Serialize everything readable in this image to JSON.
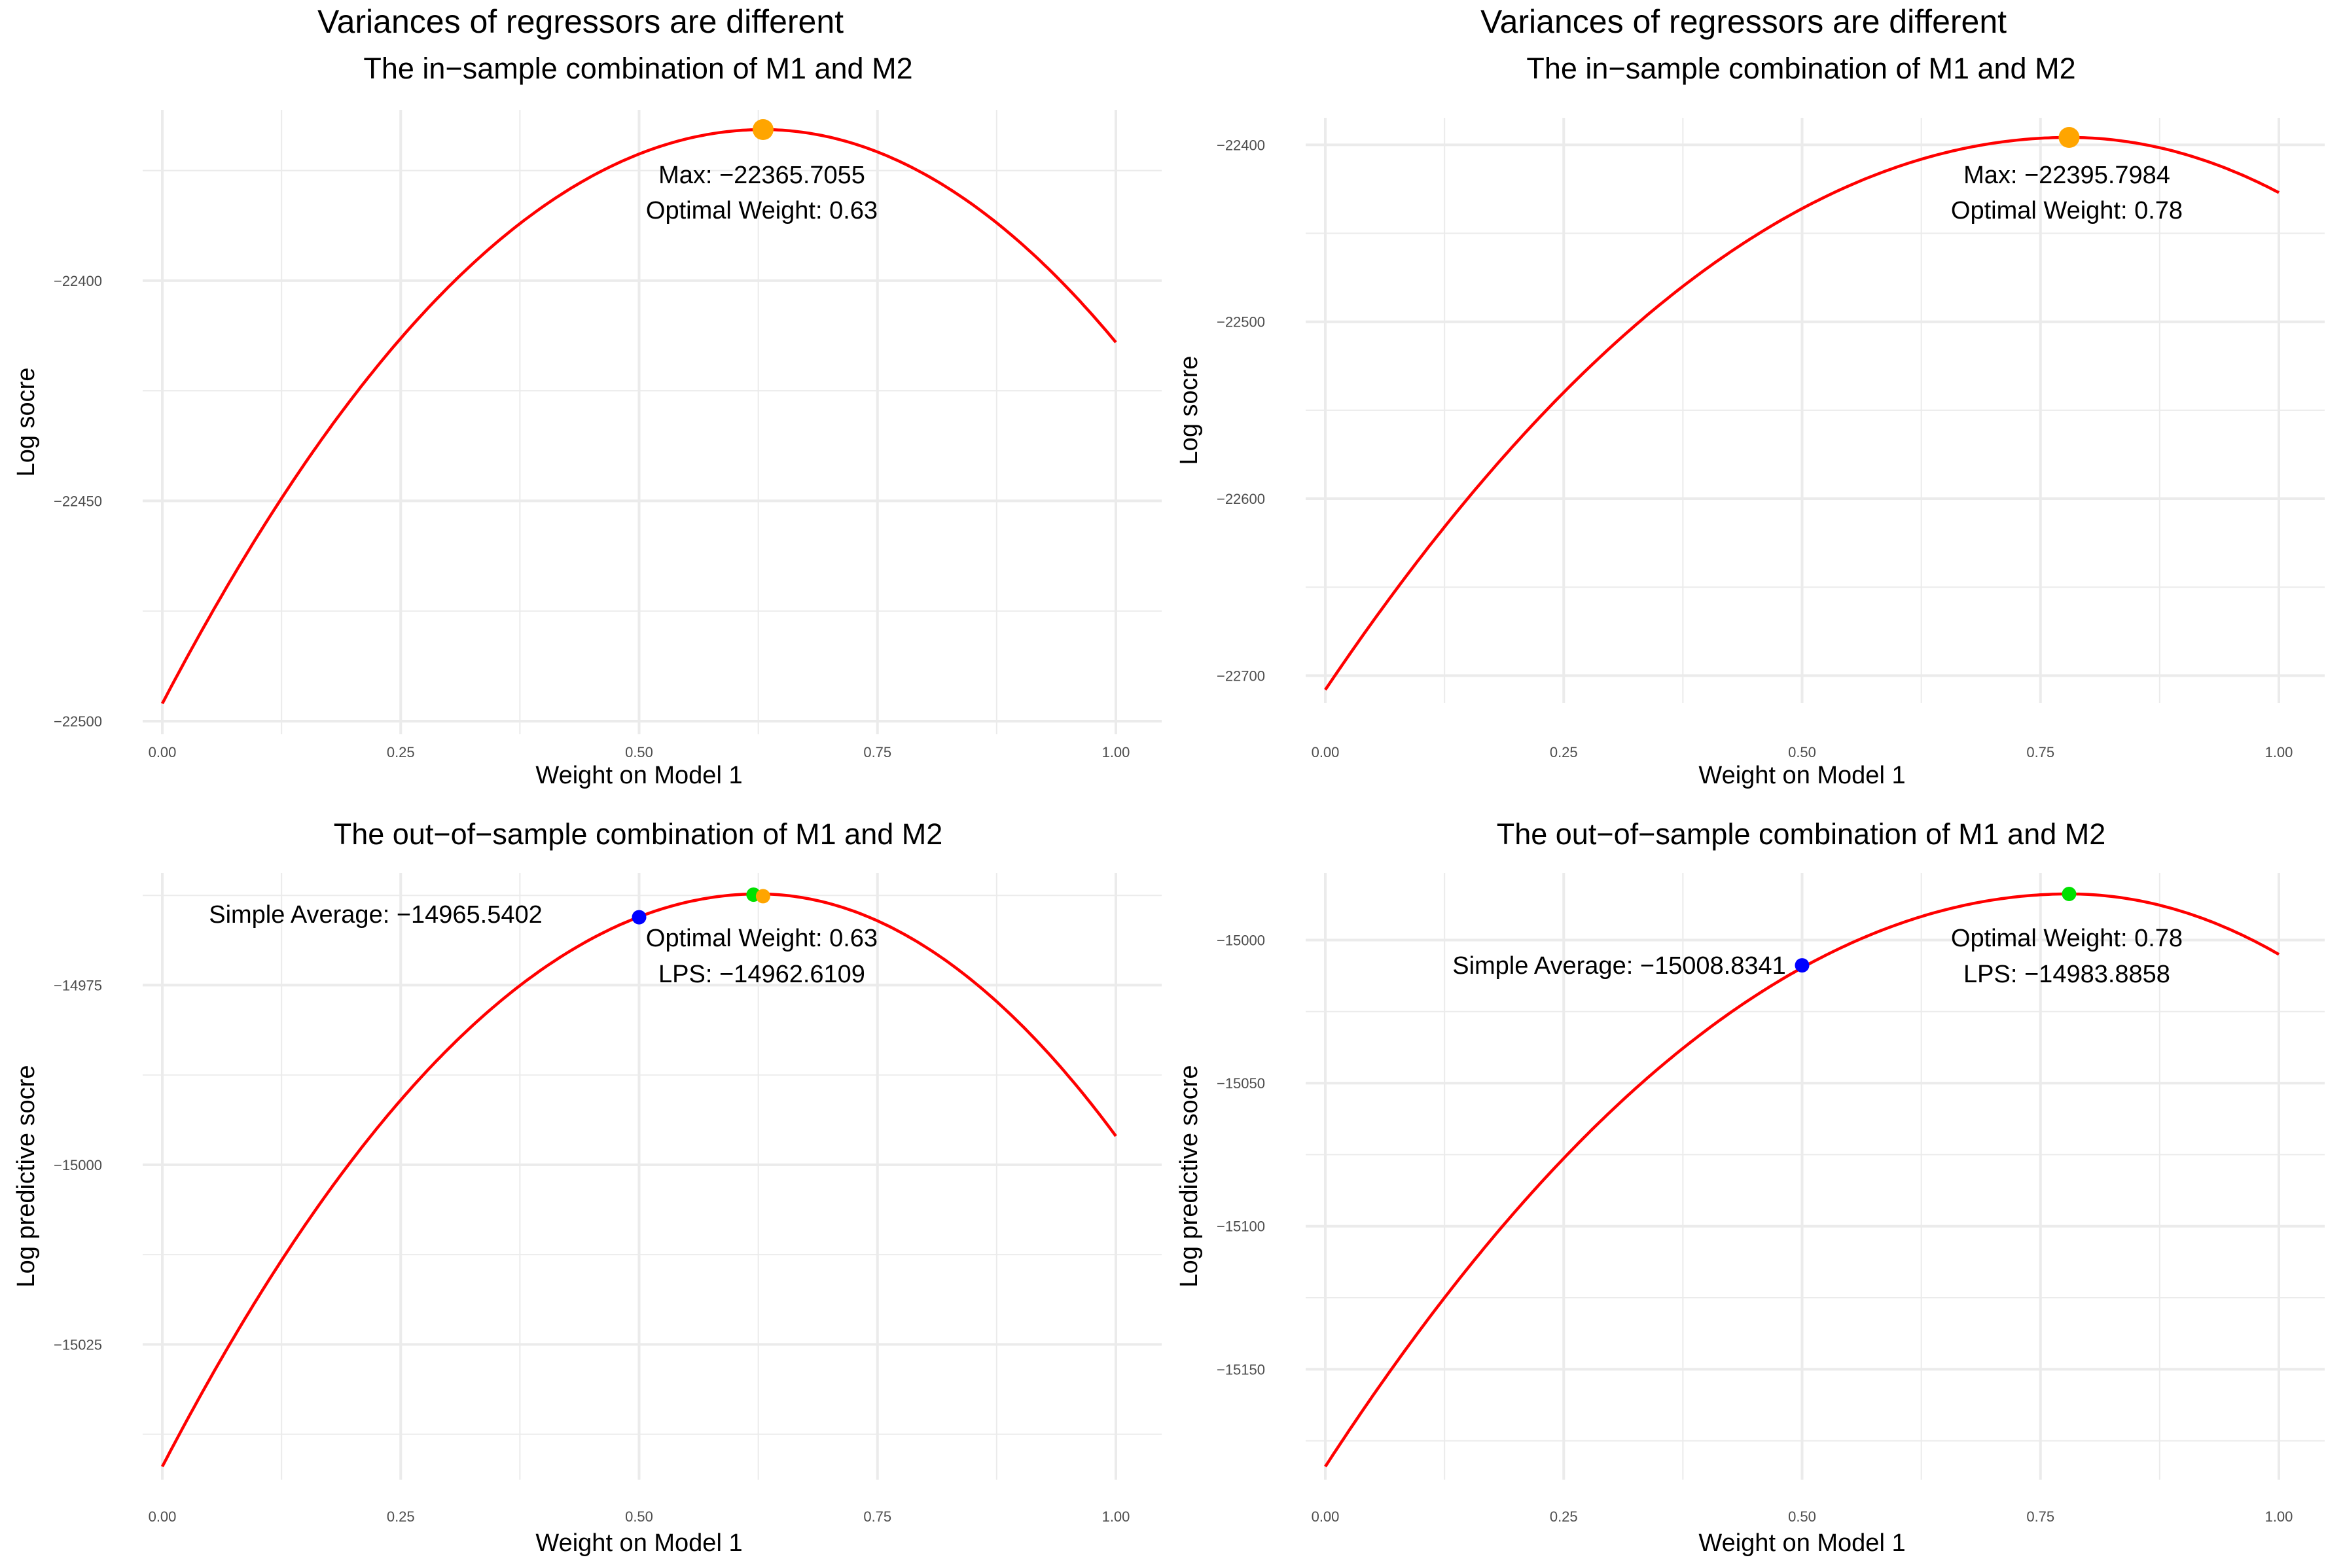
{
  "chart_data": [
    {
      "type": "line",
      "suptitle": "Variances of regressors are different",
      "title": "The in−sample combination of M1 and M2",
      "xlabel": "Weight on Model 1",
      "ylabel": "Log socre",
      "xlim": [
        0,
        1
      ],
      "ylim": [
        -22500,
        -22365.7055
      ],
      "x_ticks": [
        0,
        0.25,
        0.5,
        0.75,
        1
      ],
      "x_tick_labels": [
        "0.00",
        "0.25",
        "0.50",
        "0.75",
        "1.00"
      ],
      "y_ticks": [
        -22500,
        -22450,
        -22400
      ],
      "y_tick_labels": [
        "−22500",
        "−22450",
        "−22400"
      ],
      "grid": true,
      "series": [
        {
          "color": "#ff0000",
          "x": [
            0,
            0.63,
            1
          ],
          "y": [
            -22496,
            -22365.7055,
            -22414
          ]
        }
      ],
      "points": [
        {
          "x": 0.63,
          "y": -22365.7055,
          "color": "#ffa500"
        }
      ],
      "annotations": [
        {
          "text": "Max: −22365.7055"
        },
        {
          "text": "Optimal Weight: 0.63"
        }
      ]
    },
    {
      "type": "line",
      "suptitle": "Variances of regressors are different",
      "title": "The in−sample combination of M1 and M2",
      "xlabel": "Weight on Model 1",
      "ylabel": "Log socre",
      "xlim": [
        0,
        1
      ],
      "ylim": [
        -22708,
        -22395.7984
      ],
      "x_ticks": [
        0,
        0.25,
        0.5,
        0.75,
        1
      ],
      "x_tick_labels": [
        "0.00",
        "0.25",
        "0.50",
        "0.75",
        "1.00"
      ],
      "y_ticks": [
        -22700,
        -22600,
        -22500,
        -22400
      ],
      "y_tick_labels": [
        "−22700",
        "−22600",
        "−22500",
        "−22400"
      ],
      "grid": true,
      "series": [
        {
          "color": "#ff0000",
          "x": [
            0,
            0.78,
            1
          ],
          "y": [
            -22708,
            -22395.7984,
            -22427
          ]
        }
      ],
      "points": [
        {
          "x": 0.78,
          "y": -22395.7984,
          "color": "#ffa500"
        }
      ],
      "annotations": [
        {
          "text": "Max: −22395.7984"
        },
        {
          "text": "Optimal Weight: 0.78"
        }
      ]
    },
    {
      "type": "line",
      "title": "The out−of−sample combination of M1 and M2",
      "xlabel": "Weight on Model 1",
      "ylabel": "Log predictive socre",
      "xlim": [
        0,
        1
      ],
      "ylim": [
        -15042,
        -14962.3
      ],
      "x_ticks": [
        0,
        0.25,
        0.5,
        0.75,
        1
      ],
      "x_tick_labels": [
        "0.00",
        "0.25",
        "0.50",
        "0.75",
        "1.00"
      ],
      "y_ticks": [
        -15025,
        -15000,
        -14975
      ],
      "y_tick_labels": [
        "−15025",
        "−15000",
        "−14975"
      ],
      "grid": true,
      "series": [
        {
          "color": "#ff0000",
          "x": [
            0,
            0.625,
            1
          ],
          "y": [
            -15042,
            -14962.3,
            -14996
          ]
        }
      ],
      "points": [
        {
          "x": 0.5,
          "y": -14965.5402,
          "color": "#0000ff"
        },
        {
          "x": 0.62,
          "y": -14962.4,
          "color": "#00e000"
        },
        {
          "x": 0.63,
          "y": -14962.6109,
          "color": "#ffa500"
        }
      ],
      "annotations": [
        {
          "text": "Simple Average: −14965.5402"
        },
        {
          "text": "Optimal Weight: 0.63"
        },
        {
          "text": "LPS: −14962.6109"
        }
      ]
    },
    {
      "type": "line",
      "title": "The out−of−sample combination of M1 and M2",
      "xlabel": "Weight on Model 1",
      "ylabel": "Log predictive socre",
      "xlim": [
        0,
        1
      ],
      "ylim": [
        -15184,
        -14983.8858
      ],
      "x_ticks": [
        0,
        0.25,
        0.5,
        0.75,
        1
      ],
      "x_tick_labels": [
        "0.00",
        "0.25",
        "0.50",
        "0.75",
        "1.00"
      ],
      "y_ticks": [
        -15150,
        -15100,
        -15050,
        -15000
      ],
      "y_tick_labels": [
        "−15150",
        "−15100",
        "−15050",
        "−15000"
      ],
      "grid": true,
      "series": [
        {
          "color": "#ff0000",
          "x": [
            0,
            0.78,
            1
          ],
          "y": [
            -15184,
            -14983.8858,
            -15005
          ]
        }
      ],
      "points": [
        {
          "x": 0.5,
          "y": -15008.8341,
          "color": "#0000ff"
        },
        {
          "x": 0.78,
          "y": -14983.8858,
          "color": "#00e000"
        }
      ],
      "annotations": [
        {
          "text": "Simple Average: −15008.8341"
        },
        {
          "text": "Optimal Weight: 0.78"
        },
        {
          "text": "LPS: −14983.8858"
        }
      ]
    }
  ]
}
